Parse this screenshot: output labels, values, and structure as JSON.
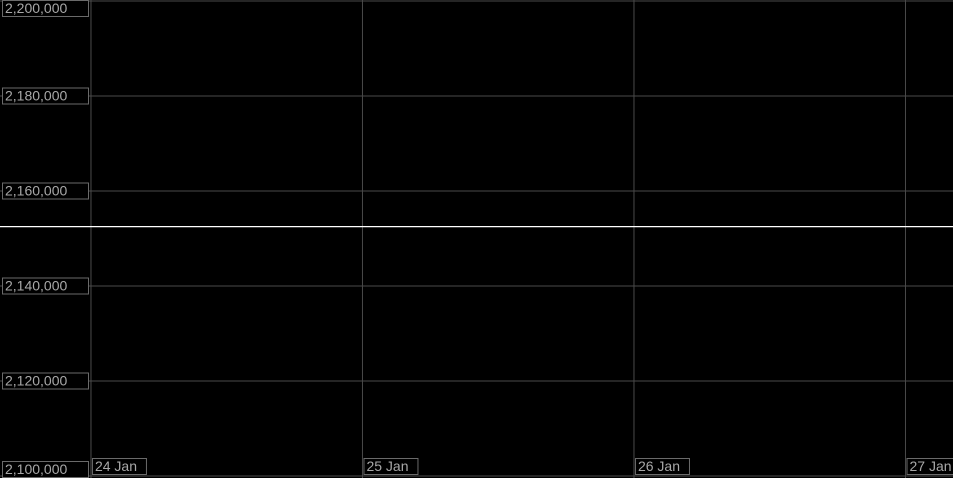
{
  "chart_data": {
    "type": "line",
    "x": [
      23.665,
      27.175
    ],
    "series": [
      {
        "color": "#ffffff",
        "values": [
          2152500,
          2152500
        ]
      }
    ],
    "xlim": [
      23.665,
      27.175
    ],
    "xticks": [
      {
        "value": 24,
        "label": "24 Jan"
      },
      {
        "value": 25,
        "label": "25 Jan"
      },
      {
        "value": 26,
        "label": "26 Jan"
      },
      {
        "value": 27,
        "label": "27 Jan"
      }
    ],
    "ylim": [
      2100000,
      2200000
    ],
    "yticks": [
      {
        "value": 2100000,
        "label": "2,100,000"
      },
      {
        "value": 2120000,
        "label": "2,120,000"
      },
      {
        "value": 2140000,
        "label": "2,140,000"
      },
      {
        "value": 2160000,
        "label": "2,160,000"
      },
      {
        "value": 2180000,
        "label": "2,180,000"
      },
      {
        "value": 2200000,
        "label": "2,200,000"
      }
    ],
    "grid": true
  }
}
